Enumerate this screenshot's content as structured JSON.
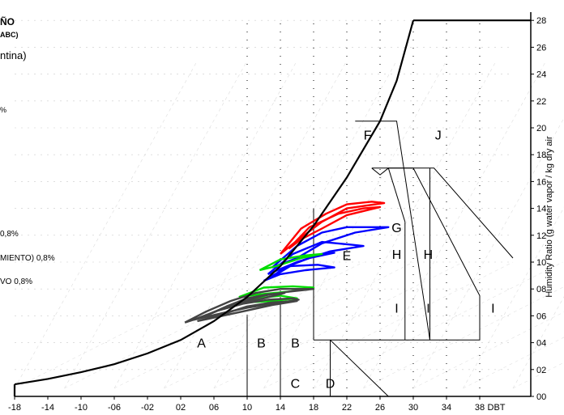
{
  "header": {
    "title_fragment": "ÑO",
    "subtitle_fragment": "ABC)",
    "location_fragment": "ntina)",
    "pct_fragment": "%"
  },
  "legend": [
    {
      "text": "0,8%",
      "color": "#ff0000"
    },
    {
      "text": "MIENTO) 0,8%",
      "color": "#0000ff"
    },
    {
      "text": "VO 0,8%",
      "color": "#00cc00"
    }
  ],
  "colors": {
    "heat": "#ff0000",
    "cool": "#0000ff",
    "dehum": "#00dd00",
    "base": "#444444"
  },
  "chart_data": {
    "type": "line",
    "subtype": "psychrometric-chart",
    "xlabel": "DBT",
    "ylabel": "Humidity Ratio (g water vapor / kg dry air",
    "x_ticks": [
      "-18",
      "-14",
      "-10",
      "-06",
      "-02",
      "02",
      "06",
      "10",
      "14",
      "18",
      "22",
      "26",
      "30",
      "34",
      "38"
    ],
    "y_ticks": [
      "00",
      "02",
      "04",
      "06",
      "08",
      "10",
      "12",
      "14",
      "16",
      "18",
      "20",
      "22",
      "24",
      "26",
      "28"
    ],
    "xlim": [
      -18,
      42
    ],
    "ylim": [
      0,
      28
    ],
    "zones": [
      {
        "label": "A",
        "x": 4.5,
        "y": 4.0
      },
      {
        "label": "B",
        "x": 11.7,
        "y": 4.0
      },
      {
        "label": "B",
        "x": 15.8,
        "y": 4.0
      },
      {
        "label": "C",
        "x": 15.8,
        "y": 1.0
      },
      {
        "label": "D",
        "x": 20.0,
        "y": 1.0
      },
      {
        "label": "E",
        "x": 22.0,
        "y": 10.5
      },
      {
        "label": "F",
        "x": 24.5,
        "y": 19.5
      },
      {
        "label": "G",
        "x": 28.0,
        "y": 12.6
      },
      {
        "label": "H",
        "x": 28.0,
        "y": 10.6
      },
      {
        "label": "H",
        "x": 31.8,
        "y": 10.6
      },
      {
        "label": "I",
        "x": 28.0,
        "y": 6.6
      },
      {
        "label": "I",
        "x": 31.8,
        "y": 6.6
      },
      {
        "label": "I",
        "x": 39.6,
        "y": 6.6
      },
      {
        "label": "J",
        "x": 33.0,
        "y": 19.5
      }
    ],
    "zone_lines": [
      [
        [
          10,
          0
        ],
        [
          10,
          6
        ]
      ],
      [
        [
          14,
          0
        ],
        [
          14,
          7.4
        ]
      ],
      [
        [
          20,
          0
        ],
        [
          20,
          4.2
        ]
      ],
      [
        [
          18,
          4.2
        ],
        [
          29,
          4.2
        ]
      ],
      [
        [
          18,
          4.2
        ],
        [
          18,
          14
        ]
      ],
      [
        [
          29,
          4.2
        ],
        [
          29,
          13
        ]
      ],
      [
        [
          32,
          4.2
        ],
        [
          32,
          17
        ]
      ],
      [
        [
          29,
          4.2
        ],
        [
          38,
          4.2
        ],
        [
          38,
          7.5
        ],
        [
          30,
          17
        ],
        [
          27,
          17
        ],
        [
          26,
          16.5
        ],
        [
          25,
          17
        ]
      ],
      [
        [
          25,
          17
        ],
        [
          32.5,
          17
        ],
        [
          42,
          10.3
        ]
      ],
      [
        [
          20,
          4.2
        ],
        [
          27,
          0
        ]
      ],
      [
        [
          23,
          20.5
        ],
        [
          28,
          20.5
        ],
        [
          32,
          4.2
        ]
      ],
      [
        [
          27,
          17
        ],
        [
          29,
          13
        ]
      ]
    ],
    "saturation_curve": [
      [
        -18,
        0.9
      ],
      [
        -14,
        1.3
      ],
      [
        -10,
        1.8
      ],
      [
        -6,
        2.4
      ],
      [
        -2,
        3.2
      ],
      [
        2,
        4.2
      ],
      [
        6,
        5.6
      ],
      [
        10,
        7.4
      ],
      [
        14,
        9.7
      ],
      [
        18,
        12.7
      ],
      [
        22,
        16.3
      ],
      [
        26,
        20.5
      ],
      [
        28,
        23.5
      ],
      [
        30,
        28
      ]
    ],
    "series": [
      {
        "color": "#ff0000",
        "segments": [
          [
            [
              14,
              10.6
            ],
            [
              16.5,
              12.5
            ],
            [
              19.5,
              13.6
            ],
            [
              22,
              14.3
            ],
            [
              25,
              14.5
            ],
            [
              26.5,
              14.4
            ],
            [
              22,
              14.0
            ],
            [
              19,
              13.0
            ],
            [
              16,
              11.6
            ],
            [
              14,
              10.6
            ]
          ],
          [
            [
              15,
              11.0
            ],
            [
              17.5,
              12.6
            ],
            [
              21,
              13.6
            ],
            [
              24,
              14.0
            ],
            [
              26,
              14.1
            ],
            [
              22,
              13.5
            ],
            [
              19,
              12.5
            ],
            [
              16.5,
              11.7
            ],
            [
              15,
              11.0
            ]
          ]
        ]
      },
      {
        "color": "#0000ff",
        "segments": [
          [
            [
              13,
              9.6
            ],
            [
              16,
              11.2
            ],
            [
              19,
              12.2
            ],
            [
              22,
              12.6
            ],
            [
              25,
              12.6
            ],
            [
              27,
              12.6
            ],
            [
              23,
              12.2
            ],
            [
              19,
              11.4
            ],
            [
              16,
              10.3
            ],
            [
              13,
              9.6
            ]
          ],
          [
            [
              12.5,
              9.1
            ],
            [
              15.5,
              10.6
            ],
            [
              19,
              11.5
            ],
            [
              22.5,
              11.3
            ],
            [
              24,
              11.2
            ],
            [
              20,
              10.8
            ],
            [
              16,
              10.0
            ],
            [
              12.5,
              9.1
            ]
          ],
          [
            [
              12,
              8.6
            ],
            [
              15,
              9.7
            ],
            [
              18.5,
              9.8
            ],
            [
              20.5,
              9.6
            ],
            [
              17,
              9.4
            ],
            [
              14,
              9.1
            ],
            [
              12,
              8.6
            ]
          ],
          [
            [
              13,
              8.9
            ],
            [
              16,
              10.0
            ],
            [
              19,
              10.6
            ],
            [
              20.5,
              10.7
            ],
            [
              17.5,
              10.3
            ],
            [
              14.5,
              9.6
            ],
            [
              13,
              8.9
            ]
          ]
        ]
      },
      {
        "color": "#00dd00",
        "segments": [
          [
            [
              11.5,
              9.4
            ],
            [
              14,
              10.2
            ],
            [
              17,
              10.5
            ],
            [
              19,
              10.6
            ],
            [
              16.5,
              10.3
            ],
            [
              13.5,
              9.7
            ],
            [
              11.5,
              9.4
            ]
          ],
          [
            [
              9,
              7.4
            ],
            [
              12,
              8.1
            ],
            [
              15.5,
              8.2
            ],
            [
              18,
              8.1
            ],
            [
              15,
              7.8
            ],
            [
              11.5,
              7.6
            ],
            [
              9,
              7.4
            ]
          ],
          [
            [
              8.5,
              6.9
            ],
            [
              11,
              7.3
            ],
            [
              14,
              7.5
            ],
            [
              16,
              7.3
            ],
            [
              13,
              7.1
            ],
            [
              10,
              7.0
            ],
            [
              8.5,
              6.9
            ]
          ]
        ]
      },
      {
        "color": "#444444",
        "segments": [
          [
            [
              2.5,
              5.5
            ],
            [
              5,
              6.3
            ],
            [
              8,
              7.1
            ],
            [
              11,
              7.7
            ],
            [
              14,
              8.0
            ],
            [
              18,
              8.0
            ],
            [
              15,
              7.8
            ],
            [
              12,
              7.5
            ],
            [
              8,
              6.8
            ],
            [
              5,
              6.0
            ],
            [
              2.5,
              5.5
            ]
          ],
          [
            [
              3.5,
              5.7
            ],
            [
              6.5,
              6.4
            ],
            [
              9.5,
              6.9
            ],
            [
              12.5,
              7.2
            ],
            [
              15.5,
              7.3
            ],
            [
              16.2,
              7.2
            ],
            [
              13,
              6.9
            ],
            [
              10,
              6.6
            ],
            [
              7,
              6.2
            ],
            [
              3.5,
              5.7
            ]
          ],
          [
            [
              4,
              5.6
            ],
            [
              7,
              6.1
            ],
            [
              10,
              6.7
            ],
            [
              13,
              7.0
            ],
            [
              16,
              7.1
            ],
            [
              13,
              6.8
            ],
            [
              10,
              6.4
            ],
            [
              7,
              6.0
            ],
            [
              4,
              5.6
            ]
          ],
          [
            [
              5,
              6.0
            ],
            [
              7.5,
              6.7
            ],
            [
              10,
              7.3
            ],
            [
              12.5,
              7.6
            ],
            [
              14.5,
              7.7
            ],
            [
              12,
              7.3
            ],
            [
              9,
              6.9
            ],
            [
              6.5,
              6.4
            ],
            [
              5,
              6.0
            ]
          ]
        ]
      }
    ]
  }
}
